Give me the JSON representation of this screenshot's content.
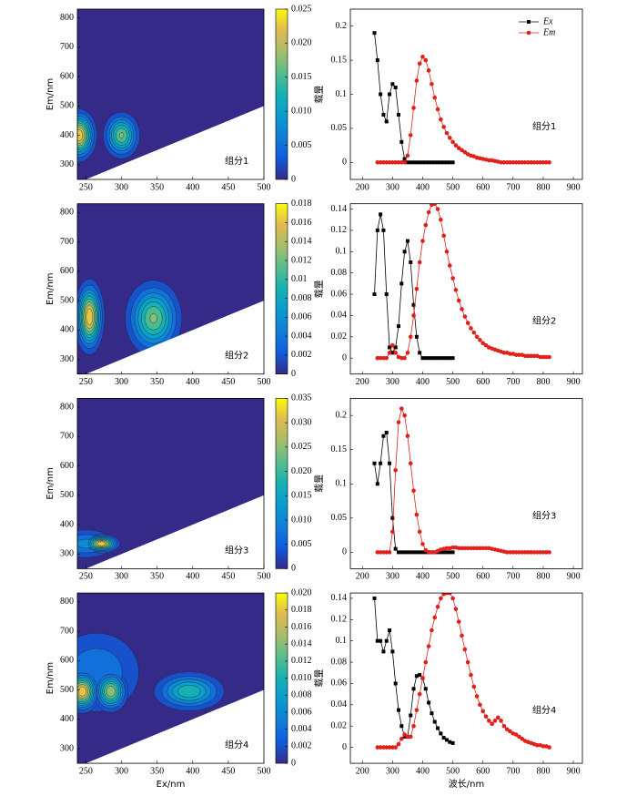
{
  "chart_data": [
    {
      "type": "contour",
      "xlim": [
        238,
        500
      ],
      "xticks": [
        250,
        300,
        350,
        400,
        450,
        500
      ],
      "ylim": [
        250,
        830
      ],
      "yticks": [
        300,
        400,
        500,
        600,
        700,
        800
      ],
      "ylabel": "Em/nm",
      "annotation": "组分1",
      "clim": [
        0,
        0.025
      ],
      "cticks": [
        0,
        0.005,
        {
          "value": 0.01,
          "label": "0.010"
        },
        0.015,
        {
          "value": 0.02,
          "label": "0.020"
        },
        0.025
      ],
      "peaks": [
        {
          "ex": 240,
          "em": 400,
          "value": 0.025,
          "ex_sigma": 12,
          "em_sigma": 42
        },
        {
          "ex": 300,
          "em": 400,
          "value": 0.018,
          "ex_sigma": 13,
          "em_sigma": 40
        }
      ]
    },
    {
      "type": "line",
      "xlim": [
        160,
        930
      ],
      "xticks": [
        200,
        300,
        400,
        500,
        600,
        700,
        800,
        900
      ],
      "ylim": [
        -0.025,
        0.225
      ],
      "yticks": [
        0,
        0.05,
        0.1,
        0.15,
        0.2
      ],
      "ylabel": "载量",
      "annotation": "组分1",
      "legend": "upper right",
      "series": [
        {
          "name": "Ex",
          "color": "#000000",
          "marker": "square",
          "x": [
            240,
            250,
            260,
            270,
            280,
            290,
            300,
            310,
            320,
            330,
            340,
            350,
            360,
            370,
            380,
            390,
            400,
            410,
            420,
            430,
            440,
            450,
            460,
            470,
            480,
            490,
            500
          ],
          "values": [
            0.19,
            0.15,
            0.1,
            0.07,
            0.06,
            0.1,
            0.115,
            0.11,
            0.07,
            0.03,
            0.005,
            0,
            0,
            0,
            0,
            0,
            0,
            0,
            0,
            0,
            0,
            0,
            0,
            0,
            0,
            0,
            0
          ]
        },
        {
          "name": "Em",
          "color": "#e0201b",
          "marker": "circle",
          "x": [
            250,
            260,
            270,
            280,
            290,
            300,
            310,
            320,
            330,
            340,
            350,
            360,
            370,
            380,
            390,
            400,
            410,
            420,
            430,
            440,
            450,
            460,
            470,
            480,
            490,
            500,
            510,
            520,
            530,
            540,
            550,
            560,
            570,
            580,
            590,
            600,
            610,
            620,
            630,
            640,
            650,
            660,
            670,
            680,
            690,
            700,
            710,
            720,
            730,
            740,
            750,
            760,
            770,
            780,
            790,
            800,
            810,
            820
          ],
          "values": [
            0,
            0,
            0,
            0,
            0,
            0,
            0,
            0,
            0,
            0,
            0.01,
            0.04,
            0.08,
            0.12,
            0.145,
            0.155,
            0.15,
            0.135,
            0.115,
            0.095,
            0.078,
            0.063,
            0.052,
            0.043,
            0.036,
            0.03,
            0.025,
            0.021,
            0.018,
            0.015,
            0.012,
            0.01,
            0.009,
            0.007,
            0.006,
            0.005,
            0.004,
            0.003,
            0.003,
            0.002,
            0.001,
            0,
            0,
            0,
            0,
            0,
            0,
            0,
            0,
            0,
            0,
            0,
            0,
            0,
            0,
            0,
            0,
            0
          ]
        }
      ]
    },
    {
      "type": "contour",
      "xlim": [
        238,
        500
      ],
      "xticks": [
        250,
        300,
        350,
        400,
        450,
        500
      ],
      "ylim": [
        250,
        830
      ],
      "yticks": [
        300,
        400,
        500,
        600,
        700,
        800
      ],
      "ylabel": "Em/nm",
      "annotation": "组分2",
      "clim": [
        0,
        0.018
      ],
      "cticks": [
        0,
        0.002,
        0.004,
        0.006,
        0.008,
        0.01,
        0.012,
        0.014,
        0.016,
        0.018
      ],
      "peaks": [
        {
          "ex": 255,
          "em": 445,
          "value": 0.018,
          "ex_sigma": 10,
          "em_sigma": 60
        },
        {
          "ex": 345,
          "em": 440,
          "value": 0.013,
          "ex_sigma": 20,
          "em_sigma": 65
        }
      ]
    },
    {
      "type": "line",
      "xlim": [
        160,
        930
      ],
      "xticks": [
        200,
        300,
        400,
        500,
        600,
        700,
        800,
        900
      ],
      "ylim": [
        -0.015,
        0.145
      ],
      "yticks": [
        0,
        0.02,
        0.04,
        0.06,
        0.08,
        0.1,
        0.12,
        0.14
      ],
      "ylabel": "载量",
      "annotation": "组分2",
      "legend": false,
      "series": [
        {
          "name": "Ex",
          "color": "#000000",
          "marker": "square",
          "x": [
            240,
            250,
            260,
            270,
            280,
            290,
            300,
            310,
            320,
            330,
            340,
            350,
            360,
            370,
            380,
            390,
            400,
            410,
            420,
            430,
            440,
            450,
            460,
            470,
            480,
            490,
            500
          ],
          "values": [
            0.06,
            0.12,
            0.135,
            0.12,
            0.06,
            0.01,
            0.005,
            0.01,
            0.03,
            0.07,
            0.1,
            0.11,
            0.09,
            0.05,
            0.02,
            0.005,
            0,
            0,
            0,
            0,
            0,
            0,
            0,
            0,
            0,
            0,
            0
          ]
        },
        {
          "name": "Em",
          "color": "#e0201b",
          "marker": "circle",
          "x": [
            250,
            260,
            270,
            280,
            290,
            300,
            310,
            320,
            330,
            340,
            350,
            360,
            370,
            380,
            390,
            400,
            410,
            420,
            430,
            440,
            450,
            460,
            470,
            480,
            490,
            500,
            510,
            520,
            530,
            540,
            550,
            560,
            570,
            580,
            590,
            600,
            610,
            620,
            630,
            640,
            650,
            660,
            670,
            680,
            690,
            700,
            710,
            720,
            730,
            740,
            750,
            760,
            770,
            780,
            790,
            800,
            810,
            820
          ],
          "values": [
            0,
            0,
            0,
            0,
            0.005,
            0.012,
            0.005,
            0.001,
            0,
            0,
            0.005,
            0.02,
            0.04,
            0.065,
            0.09,
            0.11,
            0.125,
            0.137,
            0.144,
            0.145,
            0.14,
            0.13,
            0.115,
            0.1,
            0.087,
            0.075,
            0.064,
            0.054,
            0.046,
            0.039,
            0.033,
            0.028,
            0.024,
            0.02,
            0.017,
            0.014,
            0.012,
            0.01,
            0.009,
            0.008,
            0.007,
            0.006,
            0.005,
            0.005,
            0.004,
            0.004,
            0.003,
            0.003,
            0.003,
            0.002,
            0.002,
            0.002,
            0.002,
            0.002,
            0.001,
            0.001,
            0.001,
            0.001
          ]
        }
      ]
    },
    {
      "type": "contour",
      "xlim": [
        238,
        500
      ],
      "xticks": [
        250,
        300,
        350,
        400,
        450,
        500
      ],
      "ylim": [
        250,
        830
      ],
      "yticks": [
        300,
        400,
        500,
        600,
        700,
        800
      ],
      "ylabel": "Em/nm",
      "annotation": "组分3",
      "clim": [
        0,
        0.035
      ],
      "cticks": [
        0,
        0.005,
        {
          "value": 0.01,
          "label": "0.010"
        },
        0.015,
        {
          "value": 0.02,
          "label": "0.020"
        },
        0.025,
        {
          "value": 0.03,
          "label": "0.030"
        },
        0.035
      ],
      "peaks": [
        {
          "ex": 250,
          "em": 335,
          "value": 0.012,
          "ex_sigma": 25,
          "em_sigma": 30
        },
        {
          "ex": 272,
          "em": 335,
          "value": 0.035,
          "ex_sigma": 12,
          "em_sigma": 15
        }
      ]
    },
    {
      "type": "line",
      "xlim": [
        160,
        930
      ],
      "xticks": [
        200,
        300,
        400,
        500,
        600,
        700,
        800,
        900
      ],
      "ylim": [
        -0.024,
        0.225
      ],
      "yticks": [
        0,
        0.05,
        0.1,
        0.15,
        0.2
      ],
      "ylabel": "载量",
      "annotation": "组分3",
      "legend": false,
      "series": [
        {
          "name": "Ex",
          "color": "#000000",
          "marker": "square",
          "x": [
            240,
            250,
            260,
            270,
            280,
            290,
            300,
            310,
            320,
            330,
            340,
            350,
            360,
            370,
            380,
            390,
            400,
            410,
            420,
            430,
            440,
            450,
            460,
            470,
            480,
            490,
            500
          ],
          "values": [
            0.13,
            0.1,
            0.13,
            0.17,
            0.175,
            0.13,
            0.05,
            0.005,
            0,
            0,
            0,
            0,
            0,
            0,
            0,
            0,
            0,
            0,
            0,
            0,
            0,
            0,
            0,
            0,
            0,
            0,
            0
          ]
        },
        {
          "name": "Em",
          "color": "#e0201b",
          "marker": "circle",
          "x": [
            250,
            260,
            270,
            280,
            290,
            300,
            310,
            320,
            330,
            340,
            350,
            360,
            370,
            380,
            390,
            400,
            410,
            420,
            430,
            440,
            450,
            460,
            470,
            480,
            490,
            500,
            510,
            520,
            530,
            540,
            550,
            560,
            570,
            580,
            590,
            600,
            610,
            620,
            630,
            640,
            650,
            660,
            670,
            680,
            690,
            700,
            710,
            720,
            730,
            740,
            750,
            760,
            770,
            780,
            790,
            800,
            810,
            820
          ],
          "values": [
            0,
            0,
            0,
            0,
            0,
            0.03,
            0.12,
            0.19,
            0.21,
            0.2,
            0.17,
            0.13,
            0.09,
            0.055,
            0.03,
            0.012,
            0.003,
            0,
            0,
            0,
            0.002,
            0.004,
            0.005,
            0.006,
            0.006,
            0.007,
            0.007,
            0.006,
            0.006,
            0.006,
            0.006,
            0.006,
            0.006,
            0.006,
            0.006,
            0.006,
            0.006,
            0.006,
            0.005,
            0.004,
            0.003,
            0.002,
            0.001,
            0,
            0,
            0,
            0,
            0,
            0,
            0,
            0,
            0,
            0,
            0,
            0,
            0,
            0,
            0
          ]
        }
      ]
    },
    {
      "type": "contour",
      "xlim": [
        238,
        500
      ],
      "xticks": [
        250,
        300,
        350,
        400,
        450,
        500
      ],
      "ylim": [
        250,
        830
      ],
      "yticks": [
        300,
        400,
        500,
        600,
        700,
        800
      ],
      "ylabel": "Em/nm",
      "xlabel": "Ex/nm",
      "annotation": "组分4",
      "clim": [
        0,
        0.02
      ],
      "cticks": [
        0,
        0.002,
        0.004,
        0.006,
        0.008,
        {
          "value": 0.01,
          "label": "0.010"
        },
        0.012,
        0.014,
        0.016,
        0.018,
        {
          "value": 0.02,
          "label": "0.020"
        }
      ],
      "peaks": [
        {
          "ex": 265,
          "em": 560,
          "value": 0.006,
          "ex_sigma": 40,
          "em_sigma": 90
        },
        {
          "ex": 245,
          "em": 495,
          "value": 0.02,
          "ex_sigma": 12,
          "em_sigma": 35
        },
        {
          "ex": 285,
          "em": 495,
          "value": 0.016,
          "ex_sigma": 12,
          "em_sigma": 35
        },
        {
          "ex": 395,
          "em": 495,
          "value": 0.012,
          "ex_sigma": 26,
          "em_sigma": 35
        }
      ]
    },
    {
      "type": "line",
      "xlim": [
        160,
        930
      ],
      "xticks": [
        200,
        300,
        400,
        500,
        600,
        700,
        800,
        900
      ],
      "ylim": [
        -0.015,
        0.145
      ],
      "yticks": [
        0,
        0.02,
        0.04,
        0.06,
        0.08,
        0.1,
        0.12,
        0.14
      ],
      "ylabel": "载量",
      "xlabel": "波长/nm",
      "annotation": "组分4",
      "legend": false,
      "series": [
        {
          "name": "Ex",
          "color": "#000000",
          "marker": "square",
          "x": [
            240,
            250,
            260,
            270,
            280,
            290,
            300,
            310,
            320,
            330,
            340,
            350,
            360,
            370,
            380,
            390,
            400,
            410,
            420,
            430,
            440,
            450,
            460,
            470,
            480,
            490,
            500
          ],
          "values": [
            0.14,
            0.1,
            0.1,
            0.09,
            0.1,
            0.11,
            0.09,
            0.06,
            0.035,
            0.02,
            0.01,
            0.01,
            0.03,
            0.055,
            0.067,
            0.068,
            0.065,
            0.055,
            0.042,
            0.032,
            0.024,
            0.018,
            0.013,
            0.009,
            0.007,
            0.005,
            0.004
          ]
        },
        {
          "name": "Em",
          "color": "#e0201b",
          "marker": "circle",
          "x": [
            250,
            260,
            270,
            280,
            290,
            300,
            310,
            320,
            330,
            340,
            350,
            360,
            370,
            380,
            390,
            400,
            410,
            420,
            430,
            440,
            450,
            460,
            470,
            480,
            490,
            500,
            510,
            520,
            530,
            540,
            550,
            560,
            570,
            580,
            590,
            600,
            610,
            620,
            630,
            640,
            650,
            660,
            670,
            680,
            690,
            700,
            710,
            720,
            730,
            740,
            750,
            760,
            770,
            780,
            790,
            800,
            810,
            820
          ],
          "values": [
            0,
            0,
            0,
            0,
            0,
            0,
            0,
            0.003,
            0.008,
            0.012,
            0.01,
            0.01,
            0.02,
            0.035,
            0.05,
            0.065,
            0.08,
            0.095,
            0.11,
            0.122,
            0.132,
            0.14,
            0.144,
            0.145,
            0.145,
            0.14,
            0.13,
            0.118,
            0.105,
            0.092,
            0.08,
            0.068,
            0.057,
            0.048,
            0.04,
            0.034,
            0.029,
            0.025,
            0.022,
            0.025,
            0.028,
            0.025,
            0.02,
            0.017,
            0.015,
            0.013,
            0.012,
            0.01,
            0.008,
            0.006,
            0.005,
            0.004,
            0.003,
            0.002,
            0.002,
            0.001,
            0.001,
            0
          ]
        }
      ]
    }
  ]
}
